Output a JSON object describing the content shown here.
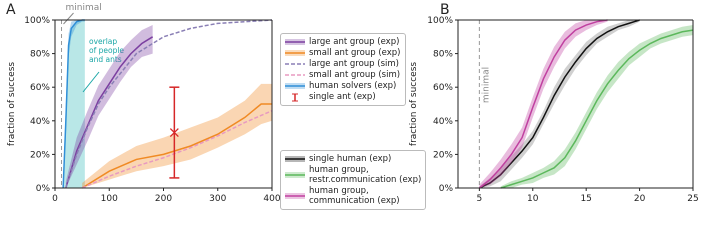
{
  "chart_data": [
    {
      "type": "line",
      "panel": "A",
      "y_label": "fraction of success",
      "xlim": [
        0,
        400
      ],
      "xticks": [
        0,
        100,
        200,
        300,
        400
      ],
      "ylim": [
        0,
        100
      ],
      "yticks": [
        {
          "value": 0,
          "label": "0%"
        },
        {
          "value": 20,
          "label": "20%"
        },
        {
          "value": 40,
          "label": "40%"
        },
        {
          "value": 60,
          "label": "60%"
        },
        {
          "value": 80,
          "label": "80%"
        },
        {
          "value": 100,
          "label": "100%"
        }
      ],
      "minimal": {
        "label": "minimal",
        "x": 12
      },
      "overlap": {
        "label": "overlap\nof people\nand ants",
        "color": "#1aa6a6",
        "xmax": 55
      },
      "series": [
        {
          "name": "large ant group (exp)",
          "color": "#7b3fa0",
          "style": "solid",
          "x": [
            20,
            40,
            60,
            80,
            100,
            120,
            140,
            160,
            180
          ],
          "values": [
            0,
            22,
            37,
            52,
            62,
            72,
            80,
            86,
            90
          ],
          "lower": [
            0,
            14,
            28,
            43,
            53,
            63,
            72,
            78,
            80
          ],
          "upper": [
            4,
            30,
            46,
            61,
            71,
            81,
            88,
            94,
            97
          ]
        },
        {
          "name": "small ant group (exp)",
          "color": "#f08a24",
          "style": "solid",
          "x": [
            50,
            100,
            150,
            200,
            250,
            300,
            350,
            380,
            400
          ],
          "values": [
            0,
            10,
            17,
            20,
            25,
            32,
            42,
            50,
            50
          ],
          "lower": [
            0,
            5,
            10,
            13,
            17,
            24,
            32,
            38,
            40
          ],
          "upper": [
            3,
            16,
            25,
            30,
            36,
            42,
            52,
            62,
            62
          ]
        },
        {
          "name": "large ant group (sim)",
          "color": "#8a7fb5",
          "style": "dashed",
          "x": [
            20,
            40,
            60,
            80,
            100,
            150,
            200,
            250,
            300,
            350,
            400
          ],
          "values": [
            0,
            20,
            36,
            50,
            60,
            80,
            90,
            95,
            98,
            99,
            100
          ]
        },
        {
          "name": "small ant group (sim)",
          "color": "#e89ac0",
          "style": "dashed",
          "x": [
            50,
            100,
            150,
            200,
            250,
            300,
            350,
            400
          ],
          "values": [
            0,
            7,
            13,
            18,
            24,
            31,
            39,
            46
          ]
        },
        {
          "name": "human solvers (exp)",
          "color": "#2f8fd8",
          "style": "solid",
          "x": [
            15,
            20,
            25,
            30,
            40,
            50,
            55
          ],
          "values": [
            0,
            40,
            85,
            95,
            99,
            100,
            100
          ],
          "lower": [
            0,
            30,
            78,
            90,
            97,
            99,
            99
          ],
          "upper": [
            5,
            50,
            92,
            99,
            100,
            100,
            100
          ]
        }
      ],
      "single_ant": {
        "name": "single ant (exp)",
        "color": "#d62728",
        "x": 220,
        "value": 33,
        "error": 27
      }
    },
    {
      "type": "line",
      "panel": "B",
      "y_label": "fraction of success",
      "xlim": [
        3,
        25
      ],
      "xticks": [
        5,
        10,
        15,
        20,
        25
      ],
      "ylim": [
        0,
        100
      ],
      "yticks": [
        {
          "value": 0,
          "label": "0%"
        },
        {
          "value": 20,
          "label": "20%"
        },
        {
          "value": 40,
          "label": "40%"
        },
        {
          "value": 60,
          "label": "60%"
        },
        {
          "value": 80,
          "label": "80%"
        },
        {
          "value": 100,
          "label": "100%"
        }
      ],
      "minimal": {
        "label": "minimal",
        "x": 5
      },
      "series": [
        {
          "name": "single human (exp)",
          "color": "#111111",
          "band_color": "#777777",
          "style": "solid",
          "x": [
            5,
            6,
            7,
            8,
            9,
            10,
            11,
            12,
            13,
            14,
            15,
            16,
            17,
            18,
            19,
            20
          ],
          "values": [
            0,
            3,
            8,
            15,
            22,
            30,
            42,
            55,
            66,
            75,
            83,
            89,
            93,
            96,
            98,
            100
          ],
          "lower": [
            0,
            1,
            4,
            11,
            18,
            26,
            38,
            50,
            61,
            71,
            79,
            86,
            90,
            94,
            96,
            99
          ],
          "upper": [
            1,
            6,
            12,
            19,
            26,
            34,
            46,
            60,
            71,
            79,
            87,
            92,
            96,
            98,
            100,
            100
          ]
        },
        {
          "name": "human group,\nrestr.communication (exp)",
          "color": "#5cb85c",
          "style": "solid",
          "x": [
            7,
            8,
            9,
            10,
            11,
            12,
            13,
            14,
            15,
            16,
            17,
            18,
            19,
            20,
            21,
            22,
            23,
            24,
            25
          ],
          "values": [
            0,
            2,
            4,
            6,
            9,
            12,
            18,
            28,
            40,
            52,
            62,
            70,
            77,
            82,
            86,
            89,
            91,
            93,
            94
          ],
          "lower": [
            0,
            0,
            2,
            3,
            6,
            8,
            13,
            23,
            35,
            47,
            57,
            65,
            73,
            78,
            83,
            86,
            88,
            90,
            91
          ],
          "upper": [
            1,
            4,
            6,
            9,
            12,
            16,
            23,
            33,
            45,
            57,
            67,
            75,
            81,
            86,
            89,
            92,
            94,
            96,
            97
          ]
        },
        {
          "name": "human group,\ncommunication (exp)",
          "color": "#c040a0",
          "style": "solid",
          "x": [
            5,
            6,
            7,
            8,
            9,
            10,
            11,
            12,
            13,
            14,
            15,
            16,
            17
          ],
          "values": [
            0,
            5,
            12,
            20,
            30,
            48,
            65,
            78,
            88,
            94,
            97,
            99,
            100
          ],
          "lower": [
            0,
            2,
            7,
            15,
            24,
            42,
            59,
            72,
            83,
            90,
            94,
            97,
            99
          ],
          "upper": [
            2,
            9,
            17,
            26,
            36,
            54,
            71,
            84,
            93,
            98,
            100,
            100,
            100
          ]
        }
      ]
    }
  ]
}
